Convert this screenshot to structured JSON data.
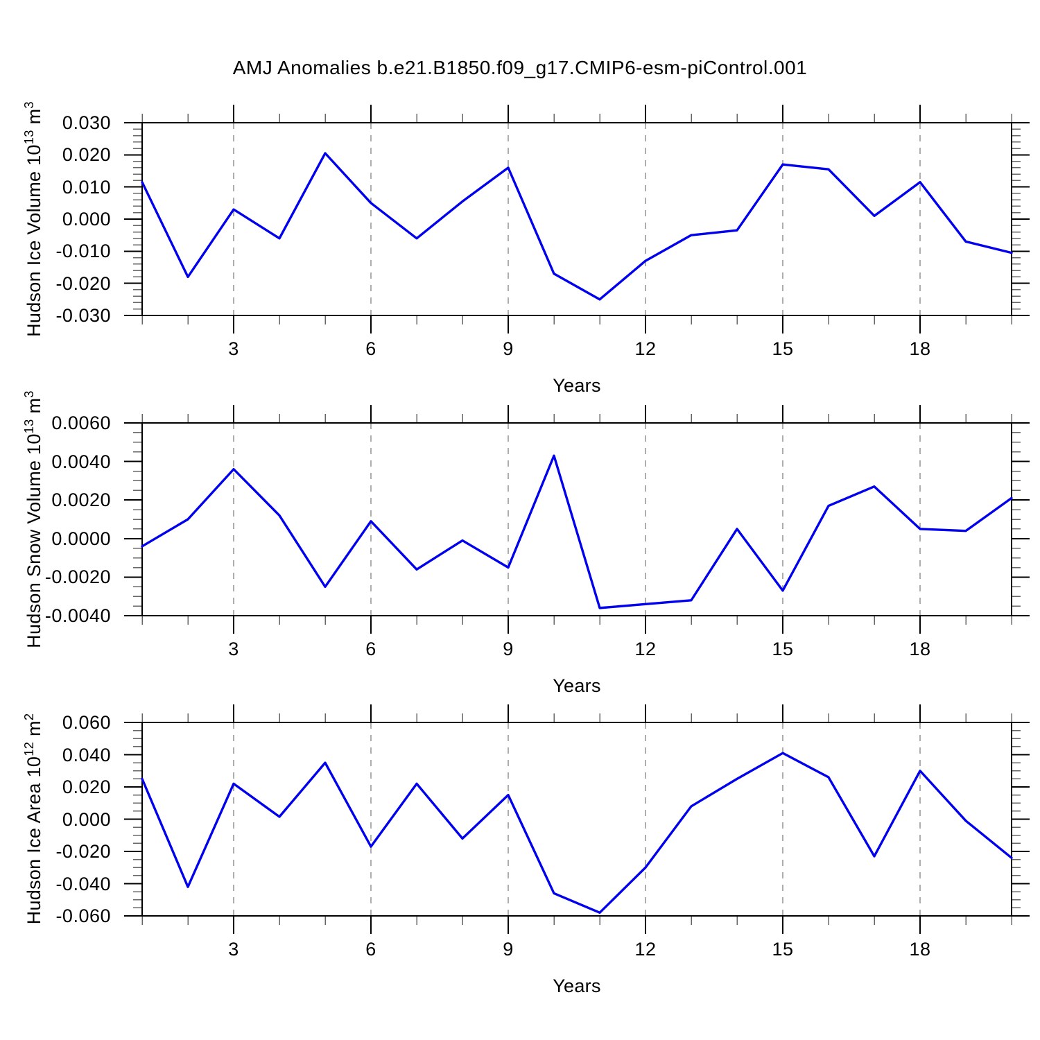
{
  "title": "AMJ Anomalies b.e21.B1850.f09_g17.CMIP6-esm-piControl.001",
  "colors": {
    "line": "#0000ee",
    "grid": "#999999",
    "axis": "#000000",
    "minor_tick": "#666666",
    "background": "#ffffff"
  },
  "x_axis": {
    "label": "Years",
    "range": [
      1,
      20
    ],
    "major_ticks": [
      3,
      6,
      9,
      12,
      15,
      18
    ],
    "minor_tick_every": 1,
    "gridlines": "dashed"
  },
  "chart_data": [
    {
      "type": "line",
      "series_name": "Hudson Ice Volume anomaly",
      "ylabel_main": "Hudson Ice Volume 10",
      "ylabel_exp": "13",
      "ylabel_unit": " m",
      "ylabel_unit_exp": "3",
      "xlabel": "Years",
      "ylim": [
        -0.03,
        0.03
      ],
      "ytick_values": [
        0.03,
        0.02,
        0.01,
        0.0,
        -0.01,
        -0.02,
        -0.03
      ],
      "ytick_labels": [
        "0.030",
        "0.020",
        "0.010",
        "0.000",
        "-0.010",
        "-0.020",
        "-0.030"
      ],
      "minor_ticks_per_interval": 4,
      "x": [
        1,
        2,
        3,
        4,
        5,
        6,
        7,
        8,
        9,
        10,
        11,
        12,
        13,
        14,
        15,
        16,
        17,
        18,
        19,
        20
      ],
      "values": [
        0.0115,
        -0.018,
        0.003,
        -0.006,
        0.0205,
        0.005,
        -0.006,
        0.0055,
        0.016,
        -0.017,
        -0.025,
        -0.013,
        -0.005,
        -0.0035,
        0.017,
        0.0155,
        0.001,
        0.0115,
        -0.007,
        -0.0105
      ]
    },
    {
      "type": "line",
      "series_name": "Hudson Snow Volume anomaly",
      "ylabel_main": "Hudson Snow Volume 10",
      "ylabel_exp": "13",
      "ylabel_unit": " m",
      "ylabel_unit_exp": "3",
      "xlabel": "Years",
      "ylim": [
        -0.004,
        0.006
      ],
      "ytick_values": [
        0.006,
        0.004,
        0.002,
        0.0,
        -0.002,
        -0.004
      ],
      "ytick_labels": [
        "0.0060",
        "0.0040",
        "0.0020",
        "0.0000",
        "-0.0020",
        "-0.0040"
      ],
      "minor_ticks_per_interval": 3,
      "x": [
        1,
        2,
        3,
        4,
        5,
        6,
        7,
        8,
        9,
        10,
        11,
        12,
        13,
        14,
        15,
        16,
        17,
        18,
        19,
        20
      ],
      "values": [
        -0.0004,
        0.001,
        0.0036,
        0.0012,
        -0.0025,
        0.0009,
        -0.0016,
        -0.0001,
        -0.0015,
        0.0043,
        -0.0036,
        -0.0034,
        -0.0032,
        0.0005,
        -0.0027,
        0.0017,
        0.0027,
        0.0005,
        0.0004,
        0.0021
      ]
    },
    {
      "type": "line",
      "series_name": "Hudson Ice Area anomaly",
      "ylabel_main": "Hudson Ice Area 10",
      "ylabel_exp": "12",
      "ylabel_unit": " m",
      "ylabel_unit_exp": "2",
      "xlabel": "Years",
      "ylim": [
        -0.06,
        0.06
      ],
      "ytick_values": [
        0.06,
        0.04,
        0.02,
        0.0,
        -0.02,
        -0.04,
        -0.06
      ],
      "ytick_labels": [
        "0.060",
        "0.040",
        "0.020",
        "0.000",
        "-0.020",
        "-0.040",
        "-0.060"
      ],
      "minor_ticks_per_interval": 3,
      "x": [
        1,
        2,
        3,
        4,
        5,
        6,
        7,
        8,
        9,
        10,
        11,
        12,
        13,
        14,
        15,
        16,
        17,
        18,
        19,
        20
      ],
      "values": [
        0.025,
        -0.042,
        0.022,
        0.0015,
        0.035,
        -0.017,
        0.022,
        -0.012,
        0.015,
        -0.046,
        -0.058,
        -0.03,
        0.008,
        0.025,
        0.041,
        0.026,
        -0.023,
        0.03,
        -0.001,
        -0.024
      ]
    }
  ]
}
